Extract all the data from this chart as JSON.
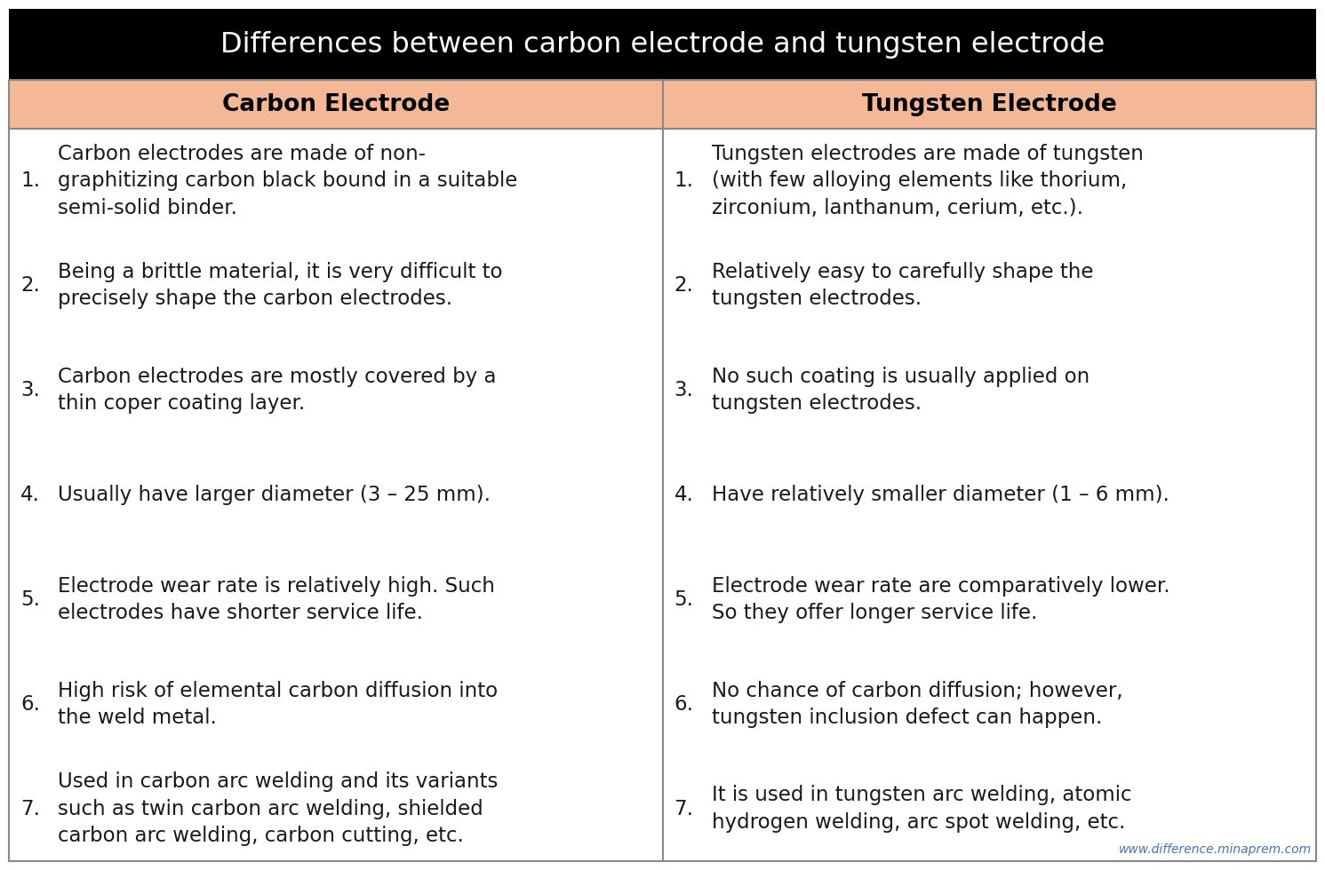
{
  "title": "Differences between carbon electrode and tungsten electrode",
  "title_bg": "#000000",
  "title_color": "#ffffff",
  "header_bg": "#f4b896",
  "header_color": "#000000",
  "col1_header": "Carbon Electrode",
  "col2_header": "Tungsten Electrode",
  "body_bg": "#ffffff",
  "body_color": "#1a1a1a",
  "border_color": "#888888",
  "watermark": "www.difference.minaprem.com",
  "watermark_color": "#4472c4",
  "carbon_points": [
    "Carbon electrodes are made of non-\ngraphitizing carbon black bound in a suitable\nsemi-solid binder.",
    "Being a brittle material, it is very difficult to\nprecisely shape the carbon electrodes.",
    "Carbon electrodes are mostly covered by a\nthin coper coating layer.",
    "Usually have larger diameter (3 – 25 mm).",
    "Electrode wear rate is relatively high. Such\nelectrodes have shorter service life.",
    "High risk of elemental carbon diffusion into\nthe weld metal.",
    "Used in carbon arc welding and its variants\nsuch as twin carbon arc welding, shielded\ncarbon arc welding, carbon cutting, etc."
  ],
  "tungsten_points": [
    "Tungsten electrodes are made of tungsten\n(with few alloying elements like thorium,\nzirconium, lanthanum, cerium, etc.).",
    "Relatively easy to carefully shape the\ntungsten electrodes.",
    "No such coating is usually applied on\ntungsten electrodes.",
    "Have relatively smaller diameter (1 – 6 mm).",
    "Electrode wear rate are comparatively lower.\nSo they offer longer service life.",
    "No chance of carbon diffusion; however,\ntungsten inclusion defect can happen.",
    "It is used in tungsten arc welding, atomic\nhydrogen welding, arc spot welding, etc."
  ],
  "title_fontsize": 23,
  "header_fontsize": 19,
  "body_fontsize": 16.5,
  "fig_width": 14.91,
  "fig_height": 9.8,
  "dpi": 100
}
